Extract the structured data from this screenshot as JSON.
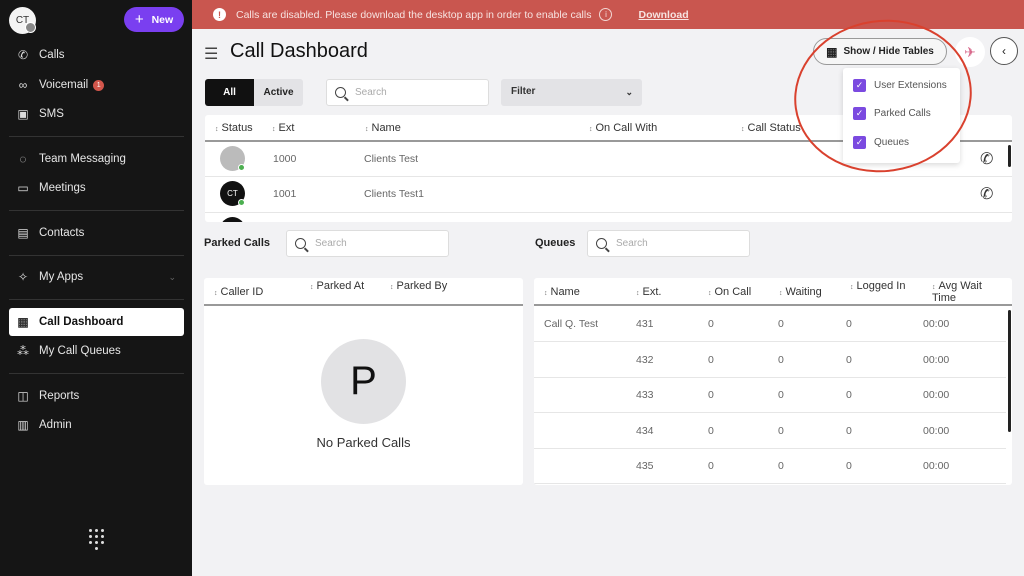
{
  "sidebar": {
    "avatar_initials": "CT",
    "new_label": "New",
    "items": [
      {
        "label": "Calls",
        "icon": "phone-icon"
      },
      {
        "label": "Voicemail",
        "icon": "voicemail-icon",
        "badge": "1"
      },
      {
        "label": "SMS",
        "icon": "sms-icon"
      },
      {
        "label": "Team Messaging",
        "icon": "chat-icon"
      },
      {
        "label": "Meetings",
        "icon": "video-icon"
      },
      {
        "label": "Contacts",
        "icon": "contacts-icon"
      },
      {
        "label": "My Apps",
        "icon": "apps-icon"
      },
      {
        "label": "Call Dashboard",
        "icon": "dashboard-icon",
        "active": true
      },
      {
        "label": "My Call Queues",
        "icon": "queues-icon"
      },
      {
        "label": "Reports",
        "icon": "reports-icon"
      },
      {
        "label": "Admin",
        "icon": "admin-icon"
      }
    ]
  },
  "banner": {
    "message": "Calls are disabled. Please download the desktop app in order to enable calls",
    "link": "Download",
    "color": "#c9564f"
  },
  "header": {
    "title": "Call Dashboard",
    "show_hide_label": "Show / Hide Tables"
  },
  "dropdown": {
    "options": [
      {
        "label": "User Extensions",
        "checked": true
      },
      {
        "label": "Parked Calls",
        "checked": true
      },
      {
        "label": "Queues",
        "checked": true
      }
    ]
  },
  "extensions": {
    "tabs": [
      "All",
      "Active"
    ],
    "search_placeholder": "Search",
    "filter_label": "Filter",
    "columns": [
      "Status",
      "Ext",
      "Name",
      "On Call With",
      "Call Status"
    ],
    "rows": [
      {
        "avatar": "",
        "ext": "1000",
        "name": "Clients Test"
      },
      {
        "avatar": "CT",
        "ext": "1001",
        "name": "Clients Test1"
      }
    ]
  },
  "parked": {
    "title": "Parked Calls",
    "search_placeholder": "Search",
    "columns": [
      "Caller ID",
      "Parked At",
      "Parked By"
    ],
    "empty_letter": "P",
    "empty_text": "No Parked Calls"
  },
  "queues": {
    "title": "Queues",
    "search_placeholder": "Search",
    "columns": [
      "Name",
      "Ext.",
      "On Call",
      "Waiting",
      "Logged In",
      "Avg Wait Time"
    ],
    "rows": [
      [
        "Call Q. Test",
        "431",
        "0",
        "0",
        "0",
        "00:00"
      ],
      [
        "",
        "432",
        "0",
        "0",
        "0",
        "00:00"
      ],
      [
        "",
        "433",
        "0",
        "0",
        "0",
        "00:00"
      ],
      [
        "",
        "434",
        "0",
        "0",
        "0",
        "00:00"
      ],
      [
        "",
        "435",
        "0",
        "0",
        "0",
        "00:00"
      ]
    ]
  },
  "colors": {
    "accent": "#7b4ae0",
    "highlight_circle": "#d9412e"
  }
}
